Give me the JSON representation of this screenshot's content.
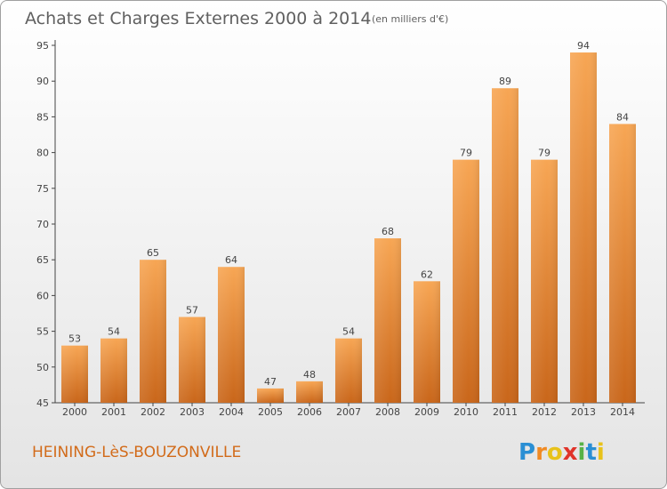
{
  "chart_data": {
    "type": "bar",
    "title": "Achats et Charges Externes 2000 à 2014",
    "subtitle": "(en milliers d'€)",
    "categories": [
      "2000",
      "2001",
      "2002",
      "2003",
      "2004",
      "2005",
      "2006",
      "2007",
      "2008",
      "2009",
      "2010",
      "2011",
      "2012",
      "2013",
      "2014"
    ],
    "values": [
      53,
      54,
      65,
      57,
      64,
      47,
      48,
      54,
      68,
      62,
      79,
      89,
      79,
      94,
      84
    ],
    "ylim": [
      45,
      97
    ],
    "yticks": [
      45,
      50,
      55,
      60,
      65,
      70,
      75,
      80,
      85,
      90,
      95
    ],
    "xlabel": "",
    "ylabel": "",
    "grid": false,
    "bar_color": "#ee8c2e"
  },
  "footer": {
    "commune": "HEINING-LèS-BOUZONVILLE",
    "logo_letters": [
      "P",
      "r",
      "o",
      "x",
      "i",
      "t",
      "i"
    ],
    "logo_colors": [
      "#2a8fd4",
      "#f08a24",
      "#e8c21a",
      "#e0342a",
      "#58b247",
      "#2a8fd4",
      "#e8c21a"
    ]
  }
}
